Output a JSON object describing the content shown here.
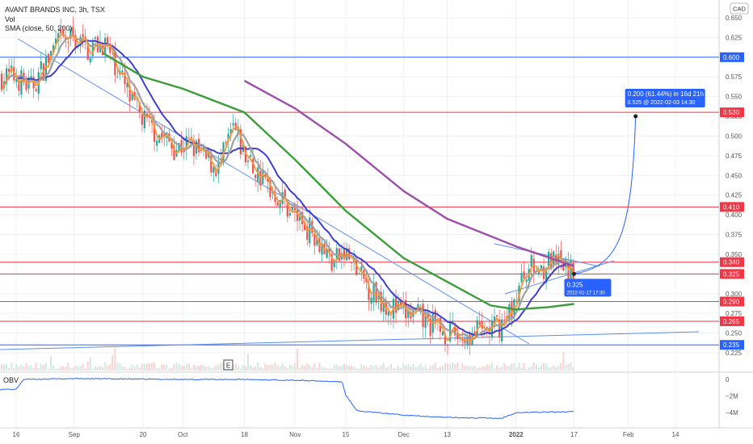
{
  "header": {
    "symbol_title": "AVANT BRANDS INC, 3h, TSX",
    "vol_label": "Vol",
    "sma_label": "SMA (close, 50, 200)",
    "currency": "CAD",
    "obv_label": "OBV",
    "event_marker": "E"
  },
  "projection": {
    "line1": "0.200 (61.44%) in 16d 21h",
    "line2": "0.525 @ 2022-02-03  14:30",
    "start_price_label": "0.325",
    "start_date_label": "2022-01-17 17:30",
    "start_date": "2022-01-17",
    "start_price": 0.325,
    "end_date": "2022-02-03",
    "end_price": 0.525
  },
  "colors": {
    "up": "#26a69a",
    "down": "#ef5350",
    "sma_fast_orange": "#f7953a",
    "sma_gray": "#a0a0a0",
    "sma_blue": "#3f3fcf",
    "sma50_green": "#3b9d3b",
    "sma200_purple": "#9c4ea8",
    "level_red": "#f23645",
    "level_blue": "#2962ff",
    "trend_blue": "#5b8def",
    "obv_line": "#2962ff"
  },
  "chart_data": {
    "type": "candlestick",
    "title": "AVANT BRANDS INC, 3h, TSX",
    "x_ticks": [
      "16",
      "Sep",
      "20",
      "Oct",
      "18",
      "Nov",
      "15",
      "Dec",
      "13",
      "2022",
      "17",
      "Feb",
      "14"
    ],
    "x_tick_dates": [
      "2021-08-16",
      "2021-09-01",
      "2021-09-20",
      "2021-10-01",
      "2021-10-18",
      "2021-11-01",
      "2021-11-15",
      "2021-12-01",
      "2021-12-13",
      "2022-01-01",
      "2022-01-17",
      "2022-02-01",
      "2022-02-14"
    ],
    "ylim": [
      0.215,
      0.66
    ],
    "y_ticks": [
      0.65,
      0.625,
      0.6,
      0.575,
      0.55,
      0.525,
      0.5,
      0.475,
      0.45,
      0.425,
      0.4,
      0.375,
      0.35,
      0.325,
      0.3,
      0.275,
      0.25,
      0.225
    ],
    "horizontal_levels": [
      {
        "price": 0.6,
        "label": "0.600",
        "color": "blue"
      },
      {
        "price": 0.53,
        "label": "0.530",
        "color": "red"
      },
      {
        "price": 0.41,
        "label": "0.410",
        "color": "red"
      },
      {
        "price": 0.34,
        "label": "0.340",
        "color": "red"
      },
      {
        "price": 0.325,
        "label": "0.325",
        "color": "red"
      },
      {
        "price": 0.29,
        "label": "0.290",
        "color": "red"
      },
      {
        "price": 0.265,
        "label": "0.265",
        "color": "red"
      },
      {
        "price": 0.235,
        "label": "0.235",
        "color": "blue"
      }
    ],
    "price_series": [
      {
        "date": "2021-08-16",
        "price": 0.575
      },
      {
        "date": "2021-08-20",
        "price": 0.56
      },
      {
        "date": "2021-08-24",
        "price": 0.59
      },
      {
        "date": "2021-08-27",
        "price": 0.615
      },
      {
        "date": "2021-09-01",
        "price": 0.625
      },
      {
        "date": "2021-09-05",
        "price": 0.61
      },
      {
        "date": "2021-09-09",
        "price": 0.62
      },
      {
        "date": "2021-09-13",
        "price": 0.585
      },
      {
        "date": "2021-09-17",
        "price": 0.54
      },
      {
        "date": "2021-09-21",
        "price": 0.515
      },
      {
        "date": "2021-09-25",
        "price": 0.5
      },
      {
        "date": "2021-09-29",
        "price": 0.485
      },
      {
        "date": "2021-10-03",
        "price": 0.49
      },
      {
        "date": "2021-10-07",
        "price": 0.47
      },
      {
        "date": "2021-10-11",
        "price": 0.46
      },
      {
        "date": "2021-10-15",
        "price": 0.51
      },
      {
        "date": "2021-10-18",
        "price": 0.475
      },
      {
        "date": "2021-10-22",
        "price": 0.45
      },
      {
        "date": "2021-10-26",
        "price": 0.43
      },
      {
        "date": "2021-10-30",
        "price": 0.41
      },
      {
        "date": "2021-11-03",
        "price": 0.39
      },
      {
        "date": "2021-11-07",
        "price": 0.375
      },
      {
        "date": "2021-11-11",
        "price": 0.34
      },
      {
        "date": "2021-11-15",
        "price": 0.35
      },
      {
        "date": "2021-11-19",
        "price": 0.32
      },
      {
        "date": "2021-11-23",
        "price": 0.3
      },
      {
        "date": "2021-11-27",
        "price": 0.285
      },
      {
        "date": "2021-12-01",
        "price": 0.275
      },
      {
        "date": "2021-12-05",
        "price": 0.27
      },
      {
        "date": "2021-12-09",
        "price": 0.26
      },
      {
        "date": "2021-12-13",
        "price": 0.25
      },
      {
        "date": "2021-12-17",
        "price": 0.245
      },
      {
        "date": "2021-12-21",
        "price": 0.25
      },
      {
        "date": "2021-12-25",
        "price": 0.255
      },
      {
        "date": "2021-12-29",
        "price": 0.265
      },
      {
        "date": "2022-01-01",
        "price": 0.295
      },
      {
        "date": "2022-01-04",
        "price": 0.335
      },
      {
        "date": "2022-01-07",
        "price": 0.33
      },
      {
        "date": "2022-01-10",
        "price": 0.34
      },
      {
        "date": "2022-01-13",
        "price": 0.335
      },
      {
        "date": "2022-01-17",
        "price": 0.325
      }
    ],
    "sma50_series": [
      {
        "date": "2021-09-09",
        "price": 0.605
      },
      {
        "date": "2021-09-20",
        "price": 0.575
      },
      {
        "date": "2021-10-01",
        "price": 0.56
      },
      {
        "date": "2021-10-18",
        "price": 0.53
      },
      {
        "date": "2021-11-01",
        "price": 0.47
      },
      {
        "date": "2021-11-15",
        "price": 0.405
      },
      {
        "date": "2021-12-01",
        "price": 0.345
      },
      {
        "date": "2021-12-13",
        "price": 0.315
      },
      {
        "date": "2021-12-25",
        "price": 0.285
      },
      {
        "date": "2022-01-01",
        "price": 0.28
      },
      {
        "date": "2022-01-10",
        "price": 0.283
      },
      {
        "date": "2022-01-17",
        "price": 0.287
      }
    ],
    "sma200_series": [
      {
        "date": "2021-10-18",
        "price": 0.57
      },
      {
        "date": "2021-11-01",
        "price": 0.535
      },
      {
        "date": "2021-11-15",
        "price": 0.49
      },
      {
        "date": "2021-12-01",
        "price": 0.43
      },
      {
        "date": "2021-12-13",
        "price": 0.395
      },
      {
        "date": "2022-01-01",
        "price": 0.36
      },
      {
        "date": "2022-01-17",
        "price": 0.335
      }
    ],
    "obv_ylabels": [
      "0",
      "−2M",
      "−4M"
    ],
    "obv_ylabel_values": [
      0,
      -2,
      -4
    ],
    "obv_series": [
      {
        "date": "2021-08-16",
        "value": -1.2
      },
      {
        "date": "2021-08-18",
        "value": 0.0
      },
      {
        "date": "2021-09-01",
        "value": 0.1
      },
      {
        "date": "2021-10-01",
        "value": 0.0
      },
      {
        "date": "2021-10-18",
        "value": 0.0
      },
      {
        "date": "2021-11-01",
        "value": -0.1
      },
      {
        "date": "2021-11-14",
        "value": -0.3
      },
      {
        "date": "2021-11-15",
        "value": -1.9
      },
      {
        "date": "2021-11-18",
        "value": -3.8
      },
      {
        "date": "2021-12-01",
        "value": -4.3
      },
      {
        "date": "2021-12-13",
        "value": -4.6
      },
      {
        "date": "2021-12-28",
        "value": -4.7
      },
      {
        "date": "2022-01-01",
        "value": -4.0
      },
      {
        "date": "2022-01-17",
        "value": -3.9
      }
    ]
  }
}
